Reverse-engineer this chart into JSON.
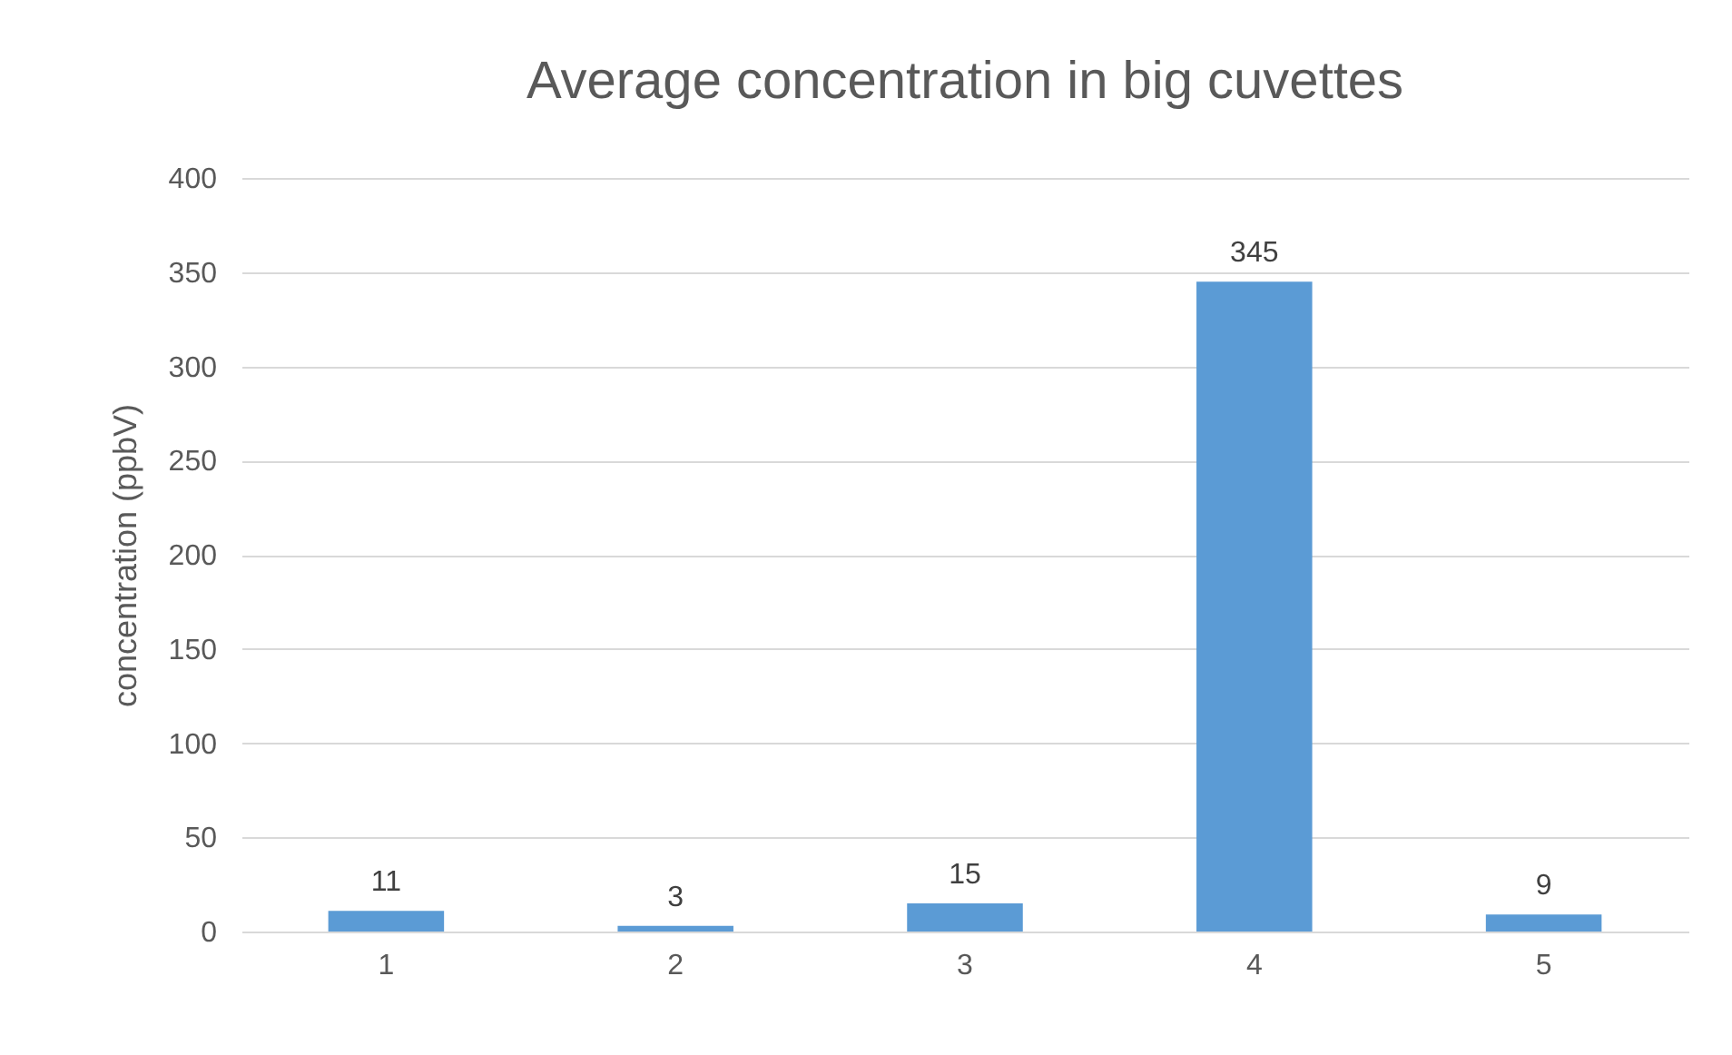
{
  "chart_data": {
    "type": "bar",
    "title": "Average concentration in big cuvettes",
    "ylabel": "concentration (ppbV)",
    "categories": [
      "1",
      "2",
      "3",
      "4",
      "5"
    ],
    "values": [
      11,
      3,
      15,
      345,
      9
    ],
    "color": "#5b9bd5",
    "ylim": [
      0,
      400
    ],
    "yticks": [
      0,
      50,
      100,
      150,
      200,
      250,
      300,
      350,
      400
    ],
    "grid": "y",
    "data_labels": true
  }
}
